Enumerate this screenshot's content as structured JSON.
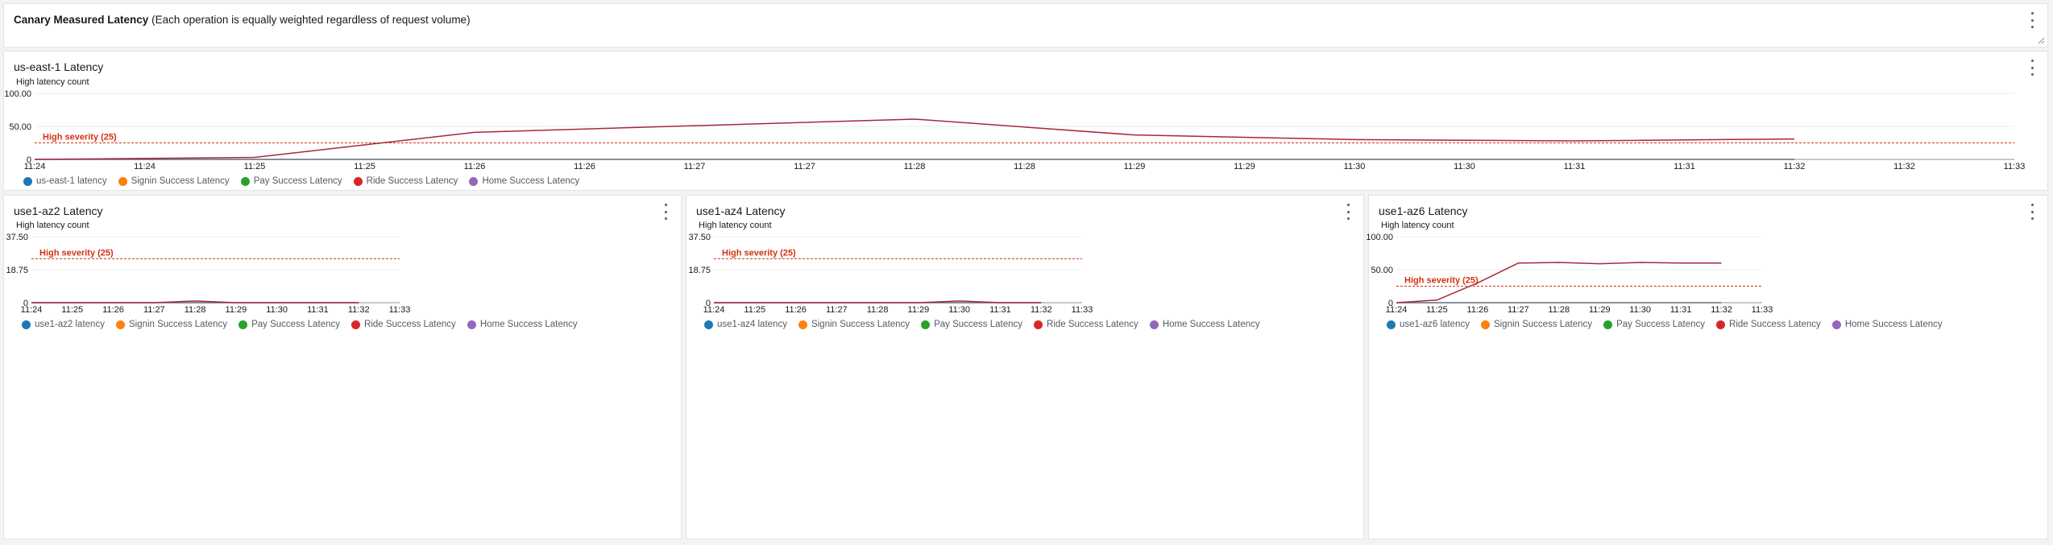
{
  "text_widget": {
    "title_bold": "Canary Measured Latency",
    "title_rest": "(Each operation is equally weighted regardless of request volume)"
  },
  "colors": {
    "series": [
      "#1f77b4",
      "#ff7f0e",
      "#2ca02c",
      "#d62728",
      "#9467bd"
    ],
    "line": "#a8273b",
    "threshold": "#d13212"
  },
  "panels": [
    {
      "title": "us-east-1 Latency",
      "ylabel": "High latency count",
      "threshold_label": "High severity (25)",
      "legend": [
        "us-east-1 latency",
        "Signin Success Latency",
        "Pay Success Latency",
        "Ride Success Latency",
        "Home Success Latency"
      ]
    },
    {
      "title": "use1-az2 Latency",
      "ylabel": "High latency count",
      "threshold_label": "High severity (25)",
      "legend": [
        "use1-az2 latency",
        "Signin Success Latency",
        "Pay Success Latency",
        "Ride Success Latency",
        "Home Success Latency"
      ]
    },
    {
      "title": "use1-az4 Latency",
      "ylabel": "High latency count",
      "threshold_label": "High severity (25)",
      "legend": [
        "use1-az4 latency",
        "Signin Success Latency",
        "Pay Success Latency",
        "Ride Success Latency",
        "Home Success Latency"
      ]
    },
    {
      "title": "use1-az6 Latency",
      "ylabel": "High latency count",
      "threshold_label": "High severity (25)",
      "legend": [
        "use1-az6 latency",
        "Signin Success Latency",
        "Pay Success Latency",
        "Ride Success Latency",
        "Home Success Latency"
      ]
    }
  ],
  "chart_data": [
    {
      "type": "line",
      "title": "us-east-1 Latency",
      "ylabel": "High latency count",
      "x_ticks": [
        "11:24",
        "11:24",
        "11:25",
        "11:25",
        "11:26",
        "11:26",
        "11:27",
        "11:27",
        "11:28",
        "11:28",
        "11:29",
        "11:29",
        "11:30",
        "11:30",
        "11:31",
        "11:31",
        "11:32",
        "11:32",
        "11:33"
      ],
      "y_ticks": [
        "100.00",
        "50.00",
        "0"
      ],
      "ylim": [
        0,
        100
      ],
      "xlim": [
        0,
        9
      ],
      "threshold": 25,
      "series": [
        {
          "name": "us-east-1 latency",
          "x": [
            0,
            1,
            2,
            3,
            4,
            5,
            6,
            7,
            8
          ],
          "y": [
            0,
            0,
            0,
            0,
            0,
            0,
            0,
            0,
            0
          ]
        },
        {
          "name": "Ride Success Latency",
          "x": [
            0,
            1,
            2,
            3,
            4,
            5,
            6,
            7,
            8
          ],
          "y": [
            0,
            3,
            41,
            51,
            61,
            37,
            30,
            28,
            31
          ]
        }
      ]
    },
    {
      "type": "line",
      "title": "use1-az2 Latency",
      "ylabel": "High latency count",
      "x_ticks": [
        "11:24",
        "11:25",
        "11:26",
        "11:27",
        "11:28",
        "11:29",
        "11:30",
        "11:31",
        "11:32",
        "11:33"
      ],
      "y_ticks": [
        "37.50",
        "18.75",
        "0"
      ],
      "ylim": [
        0,
        37.5
      ],
      "xlim": [
        0,
        9
      ],
      "threshold": 25,
      "series": [
        {
          "name": "use1-az2 latency",
          "x": [
            0,
            1,
            2,
            3,
            4,
            5,
            6,
            7,
            8
          ],
          "y": [
            0,
            0,
            0,
            0,
            0,
            0,
            0,
            0,
            0
          ]
        },
        {
          "name": "Ride Success Latency",
          "x": [
            0,
            1,
            2,
            3,
            4,
            5,
            6,
            7,
            8
          ],
          "y": [
            0,
            0,
            0,
            0,
            1,
            0,
            0,
            0,
            0
          ]
        }
      ]
    },
    {
      "type": "line",
      "title": "use1-az4 Latency",
      "ylabel": "High latency count",
      "x_ticks": [
        "11:24",
        "11:25",
        "11:26",
        "11:27",
        "11:28",
        "11:29",
        "11:30",
        "11:31",
        "11:32",
        "11:33"
      ],
      "y_ticks": [
        "37.50",
        "18.75",
        "0"
      ],
      "ylim": [
        0,
        37.5
      ],
      "xlim": [
        0,
        9
      ],
      "threshold": 25,
      "series": [
        {
          "name": "use1-az4 latency",
          "x": [
            0,
            1,
            2,
            3,
            4,
            5,
            6,
            7,
            8
          ],
          "y": [
            0,
            0,
            0,
            0,
            0,
            0,
            0,
            0,
            0
          ]
        },
        {
          "name": "Ride Success Latency",
          "x": [
            0,
            1,
            2,
            3,
            4,
            5,
            6,
            7,
            8
          ],
          "y": [
            0,
            0,
            0,
            0,
            0,
            0,
            1,
            0,
            0
          ]
        }
      ]
    },
    {
      "type": "line",
      "title": "use1-az6 Latency",
      "ylabel": "High latency count",
      "x_ticks": [
        "11:24",
        "11:25",
        "11:26",
        "11:27",
        "11:28",
        "11:29",
        "11:30",
        "11:31",
        "11:32",
        "11:33"
      ],
      "y_ticks": [
        "100.00",
        "50.00",
        "0"
      ],
      "ylim": [
        0,
        100
      ],
      "xlim": [
        0,
        9
      ],
      "threshold": 25,
      "series": [
        {
          "name": "use1-az6 latency",
          "x": [
            0,
            1,
            2,
            3,
            4,
            5,
            6,
            7,
            8
          ],
          "y": [
            0,
            0,
            0,
            0,
            0,
            0,
            0,
            0,
            0
          ]
        },
        {
          "name": "Ride Success Latency",
          "x": [
            0,
            1,
            2,
            3,
            4,
            5,
            6,
            7,
            8
          ],
          "y": [
            0,
            4,
            30,
            60,
            61,
            59,
            61,
            60,
            60
          ]
        }
      ]
    }
  ]
}
